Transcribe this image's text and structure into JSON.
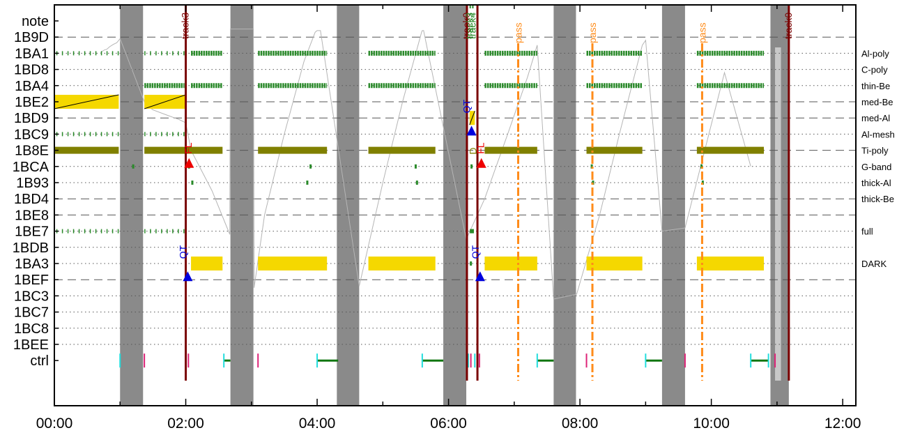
{
  "colors": {
    "gap": "#8a8a8a",
    "gap_light": "#c8c8c8",
    "track": "#7a0000",
    "green": "#2a8a2a",
    "olive": "#808000",
    "yellow": "#f5d800",
    "pass": "#ff8c1a",
    "qt": "#0000dd",
    "fl": "#ee0000",
    "ctrl_cyan": "#22dddd",
    "ctrl_pink": "#dd2277",
    "ctrl_green": "#117711",
    "gray_line": "#b5b5b5",
    "grid": "#555555"
  },
  "chart_data": {
    "type": "timeline",
    "x_ticks": [
      "00:00",
      "02:00",
      "04:00",
      "06:00",
      "08:00",
      "10:00",
      "12:00"
    ],
    "xlim": [
      0,
      12.2
    ],
    "rows": [
      "note",
      "1B9D",
      "1BA1",
      "1BD8",
      "1BA4",
      "1BE2",
      "1BD9",
      "1BC9",
      "1B8E",
      "1BCA",
      "1B93",
      "1BD4",
      "1BE8",
      "1BE7",
      "1BDB",
      "1BA3",
      "1BEF",
      "1BC3",
      "1BC7",
      "1BC8",
      "1BEE",
      "ctrl"
    ],
    "dashed_rows": [
      "1B9D",
      "1BE2",
      "1BD9",
      "1B8E",
      "1BD4",
      "1BE8",
      "1BEF"
    ],
    "right_labels": [
      {
        "row": "1BA1",
        "text": "Al-poly"
      },
      {
        "row": "1BD8",
        "text": "C-poly"
      },
      {
        "row": "1BA4",
        "text": "thin-Be"
      },
      {
        "row": "1BE2",
        "text": "med-Be"
      },
      {
        "row": "1BD9",
        "text": "med-Al"
      },
      {
        "row": "1BC9",
        "text": "Al-mesh"
      },
      {
        "row": "1B8E",
        "text": "Ti-poly"
      },
      {
        "row": "1BCA",
        "text": "G-band"
      },
      {
        "row": "1B93",
        "text": "thick-Al"
      },
      {
        "row": "1BD4",
        "text": "thick-Be"
      },
      {
        "row": "1BE7",
        "text": "full"
      },
      {
        "row": "1BA3",
        "text": "DARK"
      }
    ],
    "gaps": [
      [
        1.0,
        1.35
      ],
      [
        2.68,
        3.03
      ],
      [
        4.3,
        4.64
      ],
      [
        5.92,
        6.27
      ],
      [
        7.6,
        7.94
      ],
      [
        9.25,
        9.6
      ],
      [
        10.9,
        11.18
      ]
    ],
    "light_gaps": [
      [
        10.97,
        11.06
      ]
    ],
    "tracks": [
      {
        "x": 2.0,
        "label": "track3"
      },
      {
        "x": 6.28,
        "label": "track0"
      },
      {
        "x": 6.44,
        "label": ""
      },
      {
        "x": 11.18,
        "label": "track0"
      }
    ],
    "track_green_labels": [
      {
        "x": 6.33,
        "label": "track3"
      },
      {
        "x": 6.37,
        "label": "track4"
      }
    ],
    "pass_lines": [
      {
        "x": 7.06,
        "label": "pass"
      },
      {
        "x": 8.19,
        "label": "pass"
      },
      {
        "x": 9.86,
        "label": "pass"
      }
    ],
    "qt_markers": [
      {
        "x": 2.03,
        "row": "1BEF",
        "label": "QT"
      },
      {
        "x": 6.35,
        "row": "1BC9",
        "label": "QT"
      },
      {
        "x": 6.48,
        "row": "1BEF",
        "label": "QT"
      }
    ],
    "fl_markers": [
      {
        "x": 2.05,
        "row": "1BCA",
        "label": "FL"
      },
      {
        "x": 6.5,
        "row": "1BCA",
        "label": "FL"
      }
    ],
    "d_marker": {
      "x": 6.38,
      "row": "1B8E",
      "label": "D"
    },
    "green_ticks": [
      {
        "row": "1BA1",
        "spans": [
          [
            0.03,
            0.98
          ],
          [
            1.37,
            1.98
          ]
        ]
      },
      {
        "row": "1BC9",
        "spans": [
          [
            0.03,
            0.98
          ],
          [
            1.37,
            1.98
          ]
        ]
      },
      {
        "row": "1BE7",
        "spans": [
          [
            0.03,
            0.98
          ],
          [
            1.37,
            1.98
          ]
        ]
      }
    ],
    "green_bars": [
      {
        "row": "1BA1",
        "spans": [
          [
            2.08,
            2.56
          ],
          [
            3.1,
            4.15
          ],
          [
            4.78,
            5.8
          ],
          [
            6.55,
            7.35
          ],
          [
            8.1,
            8.95
          ],
          [
            9.78,
            10.8
          ]
        ]
      },
      {
        "row": "1BA4",
        "spans": [
          [
            1.37,
            1.98
          ],
          [
            2.08,
            2.56
          ],
          [
            3.1,
            4.15
          ],
          [
            4.78,
            5.8
          ],
          [
            6.55,
            7.35
          ],
          [
            8.1,
            8.95
          ],
          [
            9.78,
            10.8
          ]
        ]
      }
    ],
    "olive_bars": [
      [
        0.0,
        0.98
      ],
      [
        1.37,
        2.56
      ],
      [
        3.1,
        4.15
      ],
      [
        4.78,
        5.8
      ],
      [
        6.55,
        7.35
      ],
      [
        8.1,
        8.95
      ],
      [
        9.78,
        10.8
      ]
    ],
    "yellow_bars_1BE2": [
      [
        0.0,
        0.98
      ],
      [
        1.37,
        2.0
      ]
    ],
    "yellow_bars_1BA3": [
      [
        2.08,
        2.56
      ],
      [
        3.1,
        4.15
      ],
      [
        4.78,
        5.8
      ],
      [
        6.55,
        7.35
      ],
      [
        8.1,
        8.95
      ],
      [
        9.78,
        10.8
      ]
    ],
    "yellow_small_1BD9": [
      [
        6.32,
        6.4
      ]
    ],
    "ctrl": {
      "cyan": [
        1.0,
        2.0,
        2.58,
        4.0,
        5.6,
        6.3,
        6.4,
        7.35,
        9.0,
        10.6,
        10.87,
        11.18
      ],
      "pink": [
        1.37,
        2.04,
        3.1,
        6.34,
        6.47,
        8.1,
        9.6,
        10.97
      ],
      "green_spans": [
        [
          2.58,
          2.68
        ],
        [
          4.0,
          4.32
        ],
        [
          5.6,
          5.92
        ],
        [
          7.35,
          7.6
        ],
        [
          9.0,
          9.25
        ],
        [
          10.6,
          10.87
        ]
      ]
    },
    "gray_sawtooth": [
      [
        0.7,
        2.0
      ],
      [
        0.72,
        1.9
      ],
      [
        0.76,
        1.8
      ],
      [
        0.8,
        1.75
      ],
      [
        0.84,
        1.6
      ],
      [
        0.9,
        1.45
      ],
      [
        0.95,
        1.35
      ],
      [
        0.98,
        1.2
      ],
      [
        1.0,
        1.1
      ],
      [
        1.38,
        5.1
      ],
      [
        1.5,
        5.5
      ],
      [
        1.7,
        5.8
      ],
      [
        1.9,
        6.1
      ],
      [
        2.0,
        6.3
      ],
      [
        2.08,
        8.0
      ],
      [
        2.4,
        10.5
      ],
      [
        2.6,
        12.5
      ],
      [
        2.67,
        13.2
      ],
      [
        2.68,
        0.5
      ],
      [
        3.03,
        0.5
      ],
      [
        3.04,
        16.5
      ],
      [
        3.2,
        12.0
      ],
      [
        3.5,
        7.0
      ],
      [
        3.8,
        2.5
      ],
      [
        3.97,
        0.7
      ],
      [
        4.0,
        0.6
      ],
      [
        4.05,
        0.6
      ],
      [
        4.64,
        16.4
      ],
      [
        5.0,
        10.0
      ],
      [
        5.3,
        5.0
      ],
      [
        5.59,
        0.7
      ],
      [
        5.6,
        0.6
      ],
      [
        5.62,
        0.6
      ],
      [
        6.27,
        13.5
      ],
      [
        6.55,
        11.0
      ],
      [
        6.9,
        7.0
      ],
      [
        7.2,
        3.5
      ],
      [
        7.35,
        1.5
      ],
      [
        7.6,
        17.2
      ],
      [
        7.95,
        16.9
      ],
      [
        8.3,
        12.0
      ],
      [
        8.6,
        7.0
      ],
      [
        8.95,
        1.5
      ],
      [
        9.0,
        1.2
      ],
      [
        9.25,
        13.0
      ],
      [
        9.6,
        12.8
      ],
      [
        9.9,
        8.0
      ],
      [
        10.2,
        3.2
      ],
      [
        10.6,
        9.0
      ]
    ]
  }
}
